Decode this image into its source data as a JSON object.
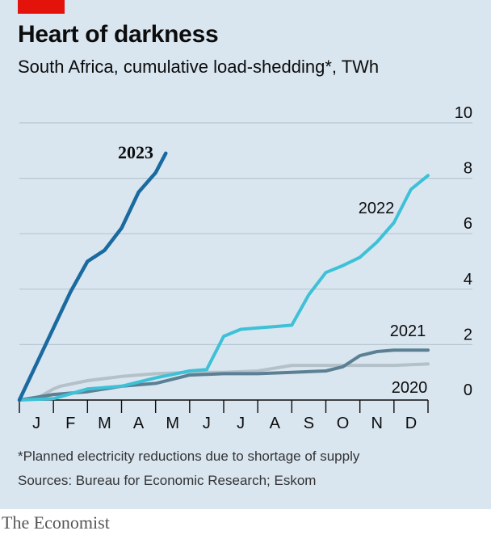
{
  "header": {
    "title": "Heart of darkness",
    "subtitle": "South Africa, cumulative load-shedding*, TWh"
  },
  "footer": {
    "footnote": "*Planned electricity reductions due to shortage of supply",
    "sources": "Sources: Bureau for Economic Research; Eskom",
    "brand": "The Economist"
  },
  "colors": {
    "background": "#d9e6f0",
    "grid": "#b7c6d2",
    "s2023": "#1a6aa0",
    "s2022": "#3ec1d6",
    "s2021": "#5b8094",
    "s2020": "#b4c1c9",
    "accent": "#e3120b"
  },
  "chart_data": {
    "type": "line",
    "title": "Heart of darkness",
    "subtitle": "South Africa, cumulative load-shedding*, TWh",
    "xlabel": "",
    "ylabel": "TWh",
    "xlim": [
      0,
      12
    ],
    "ylim": [
      0,
      10
    ],
    "y_ticks": [
      "0",
      "2",
      "4",
      "6",
      "8",
      "10"
    ],
    "x_tick_labels": [
      "J",
      "F",
      "M",
      "A",
      "M",
      "J",
      "J",
      "A",
      "S",
      "O",
      "N",
      "D"
    ],
    "series": [
      {
        "name": "2020",
        "color": "#b4c1c9",
        "x": [
          0,
          0.5,
          1.0,
          1.2,
          2.0,
          3.0,
          4.0,
          5.0,
          6.0,
          7.0,
          8.0,
          9.0,
          10.0,
          11.0,
          12.0
        ],
        "values": [
          0,
          0.05,
          0.4,
          0.5,
          0.7,
          0.85,
          0.95,
          1.0,
          1.0,
          1.05,
          1.25,
          1.25,
          1.25,
          1.25,
          1.3
        ]
      },
      {
        "name": "2021",
        "color": "#5b8094",
        "x": [
          0,
          0.5,
          1.0,
          2.0,
          3.0,
          4.0,
          5.0,
          6.0,
          7.0,
          8.0,
          9.0,
          9.5,
          10.0,
          10.5,
          11.0,
          12.0
        ],
        "values": [
          0,
          0.1,
          0.2,
          0.3,
          0.5,
          0.6,
          0.9,
          0.95,
          0.95,
          1.0,
          1.05,
          1.2,
          1.6,
          1.75,
          1.8,
          1.8
        ]
      },
      {
        "name": "2022",
        "color": "#3ec1d6",
        "x": [
          0,
          1.0,
          2.0,
          3.0,
          4.0,
          5.0,
          5.5,
          6.0,
          6.5,
          7.0,
          7.5,
          8.0,
          8.5,
          9.0,
          9.5,
          10.0,
          10.5,
          11.0,
          11.5,
          12.0
        ],
        "values": [
          0,
          0.05,
          0.4,
          0.5,
          0.8,
          1.05,
          1.1,
          2.3,
          2.55,
          2.6,
          2.65,
          2.7,
          3.8,
          4.6,
          4.85,
          5.15,
          5.7,
          6.4,
          7.6,
          8.1
        ]
      },
      {
        "name": "2023",
        "color": "#1a6aa0",
        "x": [
          0,
          0.5,
          1.0,
          1.5,
          2.0,
          2.5,
          3.0,
          3.5,
          4.0,
          4.3
        ],
        "values": [
          0,
          1.3,
          2.6,
          3.9,
          5.0,
          5.4,
          6.2,
          7.5,
          8.2,
          8.9
        ]
      }
    ],
    "series_labels": [
      "2023",
      "2022",
      "2021",
      "2020"
    ],
    "grid": true
  }
}
